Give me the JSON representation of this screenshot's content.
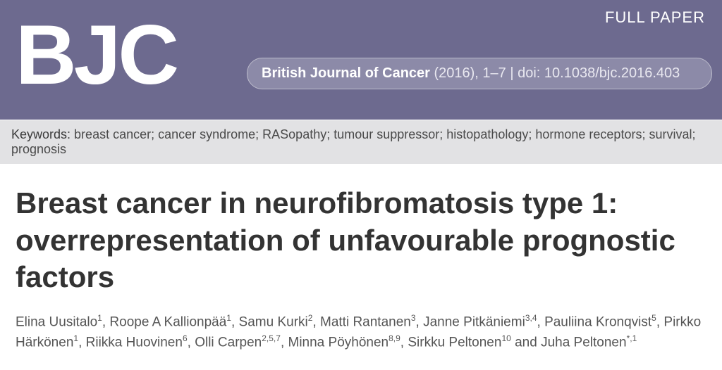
{
  "header": {
    "paper_type": "FULL PAPER",
    "logo_text": "BJC",
    "journal_bold": "British Journal of Cancer",
    "citation_rest": " (2016), 1–7 | doi: 10.1038/bjc.2016.403",
    "band_color": "#6d6a8f",
    "pill_color": "#8c8aa8"
  },
  "keywords": {
    "label": "Keywords:",
    "text": " breast cancer; cancer syndrome; RASopathy; tumour suppressor; histopathology; hormone receptors; survival; prognosis",
    "bar_color": "#e2e2e4"
  },
  "title": {
    "text": "Breast cancer in neurofibromatosis type 1: overrepresentation of unfavourable prognostic factors",
    "fontsize": 42,
    "color": "#333333"
  },
  "authors": [
    {
      "name": "Elina Uusitalo",
      "aff": "1"
    },
    {
      "name": "Roope A Kallionpää",
      "aff": "1"
    },
    {
      "name": "Samu Kurki",
      "aff": "2"
    },
    {
      "name": "Matti Rantanen",
      "aff": "3"
    },
    {
      "name": "Janne Pitkäniemi",
      "aff": "3,4"
    },
    {
      "name": "Pauliina Kronqvist",
      "aff": "5"
    },
    {
      "name": "Pirkko Härkönen",
      "aff": "1"
    },
    {
      "name": "Riikka Huovinen",
      "aff": "6"
    },
    {
      "name": "Olli Carpen",
      "aff": "2,5,7"
    },
    {
      "name": "Minna Pöyhönen",
      "aff": "8,9"
    },
    {
      "name": "Sirkku Peltonen",
      "aff": "10"
    },
    {
      "name": "Juha Peltonen",
      "aff": "*,1"
    }
  ],
  "author_join": ", ",
  "author_last_join": " and "
}
